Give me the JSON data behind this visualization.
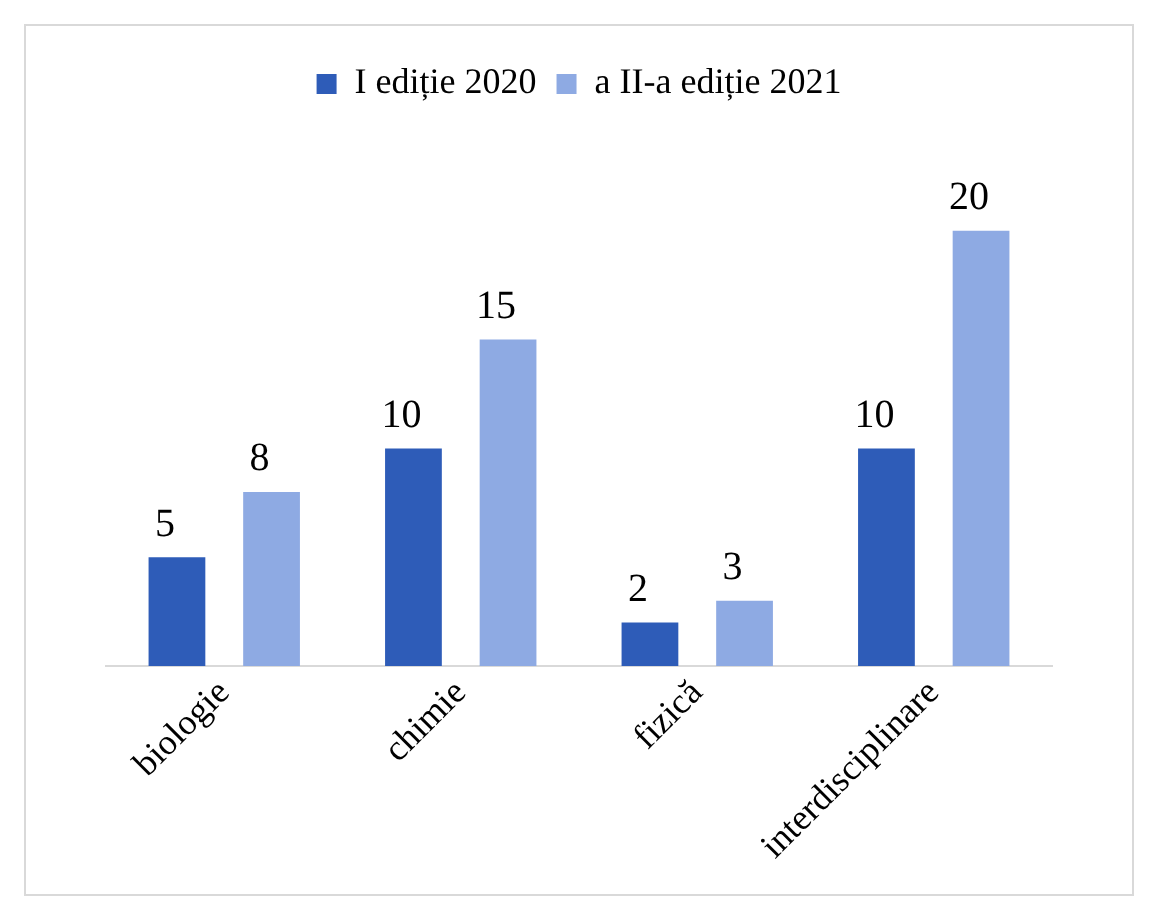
{
  "chart_data": {
    "type": "bar",
    "categories": [
      "biologie",
      "chimie",
      "fizică",
      "interdisciplinare"
    ],
    "series": [
      {
        "name": "I ediție 2020",
        "color": "#2e5cb8",
        "values": [
          5,
          10,
          2,
          10
        ]
      },
      {
        "name": "a II-a ediție 2021",
        "color": "#8eaae3",
        "values": [
          8,
          15,
          3,
          20
        ]
      }
    ],
    "data_labels": true,
    "legend": "top",
    "grid": false
  }
}
